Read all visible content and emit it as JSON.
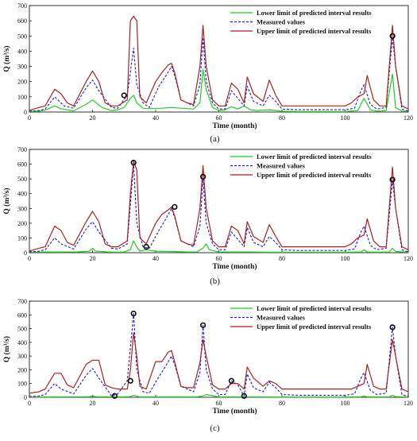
{
  "chart_data": [
    {
      "type": "line",
      "caption": "(a)",
      "xlabel": "Time (month)",
      "ylabel": "Q (m³/s)",
      "xlim": [
        0,
        120
      ],
      "ylim": [
        0,
        700
      ],
      "x_ticks": [
        0,
        20,
        40,
        60,
        80,
        100,
        120
      ],
      "y_ticks": [
        0,
        100,
        200,
        300,
        400,
        500,
        600,
        700
      ],
      "legend_position": "top-right",
      "series": [
        {
          "name": "Lower limit of  predicted interval results",
          "color": "#22cc22",
          "style": "solid",
          "x": [
            0,
            3,
            5,
            8,
            10,
            14,
            18,
            20,
            23,
            26,
            28,
            30,
            32,
            33,
            34,
            36,
            38,
            42,
            45,
            48,
            52,
            54,
            55,
            56,
            58,
            60,
            62,
            64,
            66,
            68,
            70,
            72,
            76,
            80,
            85,
            90,
            95,
            100,
            104,
            106,
            108,
            110,
            113,
            115,
            116,
            118,
            120
          ],
          "y": [
            3,
            6,
            12,
            40,
            22,
            8,
            50,
            80,
            30,
            10,
            15,
            30,
            90,
            110,
            60,
            25,
            22,
            25,
            30,
            25,
            20,
            60,
            280,
            150,
            30,
            10,
            15,
            35,
            20,
            40,
            15,
            10,
            15,
            5,
            3,
            3,
            3,
            3,
            10,
            90,
            15,
            5,
            10,
            250,
            30,
            5,
            5
          ]
        },
        {
          "name": "Measured values",
          "color": "#1f1fcc",
          "style": "dashed",
          "x": [
            0,
            3,
            5,
            8,
            9,
            11,
            14,
            18,
            20,
            22,
            26,
            28,
            31,
            33,
            34,
            36,
            38,
            41,
            43,
            45,
            46,
            48,
            52,
            54,
            55,
            56,
            58,
            60,
            62,
            64,
            66,
            68,
            69,
            71,
            74,
            76,
            78,
            80,
            85,
            90,
            95,
            100,
            103,
            105,
            106,
            108,
            110,
            113,
            115,
            116,
            118,
            120
          ],
          "y": [
            5,
            10,
            20,
            100,
            80,
            40,
            25,
            160,
            210,
            140,
            30,
            25,
            110,
            420,
            180,
            60,
            30,
            170,
            230,
            300,
            240,
            80,
            40,
            180,
            490,
            200,
            60,
            20,
            20,
            140,
            90,
            40,
            170,
            70,
            40,
            110,
            70,
            20,
            15,
            15,
            15,
            15,
            25,
            140,
            180,
            50,
            20,
            30,
            490,
            300,
            20,
            5
          ]
        },
        {
          "name": "Upper limit of  predicted interval results",
          "color": "#a82222",
          "style": "solid",
          "x": [
            0,
            3,
            5,
            8,
            10,
            12,
            14,
            18,
            20,
            22,
            24,
            26,
            28,
            31,
            32,
            33,
            34,
            35,
            37,
            40,
            42,
            44,
            45,
            46,
            48,
            50,
            52,
            54,
            55,
            56,
            58,
            60,
            62,
            64,
            66,
            68,
            69,
            71,
            74,
            76,
            78,
            80,
            85,
            90,
            95,
            100,
            102,
            104,
            106,
            107,
            109,
            111,
            113,
            115,
            116,
            118,
            120
          ],
          "y": [
            10,
            30,
            40,
            150,
            120,
            60,
            40,
            200,
            270,
            200,
            60,
            40,
            40,
            80,
            600,
            630,
            600,
            100,
            60,
            200,
            260,
            310,
            320,
            260,
            80,
            60,
            50,
            300,
            570,
            300,
            80,
            40,
            40,
            190,
            150,
            60,
            230,
            120,
            70,
            210,
            110,
            40,
            40,
            40,
            40,
            40,
            60,
            100,
            120,
            240,
            80,
            40,
            40,
            570,
            300,
            40,
            20
          ]
        }
      ],
      "markers": [
        {
          "x": 30,
          "y": 110
        },
        {
          "x": 115,
          "y": 500
        }
      ]
    },
    {
      "type": "line",
      "caption": "(b)",
      "xlabel": "Time (month)",
      "ylabel": "Q (m³/s)",
      "xlim": [
        0,
        120
      ],
      "ylim": [
        0,
        700
      ],
      "x_ticks": [
        0,
        20,
        40,
        60,
        80,
        100,
        120
      ],
      "y_ticks": [
        0,
        100,
        200,
        300,
        400,
        500,
        600,
        700
      ],
      "legend_position": "top-right",
      "series": [
        {
          "name": "Lower limit of  predicted interval results",
          "color": "#22cc22",
          "style": "solid",
          "x": [
            0,
            5,
            10,
            15,
            19,
            20,
            21,
            25,
            28,
            30,
            32,
            33,
            34,
            35,
            37,
            40,
            45,
            50,
            53,
            55,
            56,
            57,
            60,
            65,
            70,
            75,
            80,
            90,
            100,
            105,
            106,
            107,
            110,
            114,
            115,
            116,
            120
          ],
          "y": [
            3,
            5,
            5,
            5,
            10,
            30,
            10,
            5,
            3,
            5,
            20,
            80,
            40,
            10,
            20,
            10,
            8,
            5,
            5,
            30,
            60,
            20,
            5,
            5,
            5,
            3,
            3,
            3,
            3,
            5,
            20,
            5,
            3,
            5,
            30,
            8,
            3
          ]
        },
        {
          "name": "Measured values",
          "color": "#1f1fcc",
          "style": "dashed",
          "x": [
            0,
            3,
            5,
            8,
            10,
            14,
            18,
            20,
            22,
            26,
            28,
            31,
            33,
            34,
            36,
            38,
            41,
            43,
            45,
            46,
            48,
            52,
            54,
            55,
            56,
            58,
            60,
            62,
            64,
            66,
            68,
            69,
            71,
            74,
            76,
            78,
            80,
            85,
            90,
            95,
            100,
            103,
            105,
            106,
            108,
            110,
            113,
            115,
            116,
            118,
            120
          ],
          "y": [
            5,
            10,
            20,
            100,
            60,
            25,
            160,
            210,
            140,
            30,
            25,
            60,
            600,
            200,
            40,
            30,
            150,
            220,
            300,
            240,
            80,
            40,
            180,
            500,
            200,
            60,
            20,
            20,
            140,
            90,
            40,
            170,
            70,
            40,
            110,
            70,
            20,
            15,
            15,
            15,
            15,
            25,
            140,
            180,
            50,
            20,
            30,
            490,
            300,
            20,
            5
          ]
        },
        {
          "name": "Upper limit of  predicted interval results",
          "color": "#a82222",
          "style": "solid",
          "x": [
            0,
            3,
            5,
            8,
            10,
            12,
            14,
            18,
            20,
            22,
            24,
            26,
            28,
            31,
            32,
            33,
            34,
            35,
            37,
            40,
            42,
            44,
            45,
            46,
            48,
            50,
            52,
            54,
            55,
            56,
            58,
            60,
            62,
            64,
            66,
            68,
            69,
            71,
            74,
            76,
            78,
            80,
            85,
            90,
            95,
            100,
            102,
            104,
            106,
            107,
            109,
            111,
            113,
            115,
            116,
            118,
            120
          ],
          "y": [
            10,
            30,
            40,
            180,
            150,
            70,
            50,
            210,
            280,
            210,
            60,
            40,
            40,
            80,
            400,
            620,
            560,
            100,
            60,
            200,
            260,
            290,
            310,
            250,
            80,
            60,
            50,
            300,
            590,
            300,
            80,
            40,
            40,
            180,
            150,
            60,
            210,
            110,
            70,
            190,
            110,
            40,
            40,
            40,
            40,
            40,
            60,
            100,
            120,
            230,
            80,
            40,
            40,
            580,
            300,
            40,
            20
          ]
        }
      ],
      "markers": [
        {
          "x": 33,
          "y": 610
        },
        {
          "x": 37,
          "y": 40
        },
        {
          "x": 46,
          "y": 310
        },
        {
          "x": 55,
          "y": 515
        },
        {
          "x": 115,
          "y": 495
        }
      ]
    },
    {
      "type": "line",
      "caption": "(c)",
      "xlabel": "Time (month)",
      "ylabel": "Q (m³/s)",
      "xlim": [
        0,
        120
      ],
      "ylim": [
        0,
        700
      ],
      "x_ticks": [
        0,
        20,
        40,
        60,
        80,
        100,
        120
      ],
      "y_ticks": [
        0,
        100,
        200,
        300,
        400,
        500,
        600,
        700
      ],
      "legend_position": "top-right",
      "series": [
        {
          "name": "Lower limit of  predicted interval results",
          "color": "#22cc22",
          "style": "solid",
          "x": [
            0,
            10,
            19,
            20,
            21,
            30,
            32,
            33,
            34,
            35,
            45,
            53,
            55,
            56,
            60,
            70,
            80,
            90,
            100,
            105,
            106,
            107,
            114,
            115,
            116,
            120
          ],
          "y": [
            2,
            3,
            4,
            10,
            4,
            3,
            5,
            15,
            8,
            3,
            3,
            3,
            10,
            20,
            3,
            3,
            2,
            2,
            2,
            3,
            10,
            3,
            3,
            15,
            5,
            2
          ]
        },
        {
          "name": "Measured values",
          "color": "#1f1fcc",
          "style": "dashed",
          "x": [
            0,
            3,
            5,
            8,
            10,
            14,
            18,
            20,
            22,
            26,
            28,
            31,
            33,
            34,
            36,
            38,
            41,
            43,
            45,
            46,
            48,
            52,
            54,
            55,
            56,
            58,
            60,
            62,
            64,
            66,
            68,
            69,
            71,
            74,
            76,
            78,
            80,
            85,
            90,
            95,
            100,
            103,
            105,
            106,
            108,
            110,
            113,
            115,
            116,
            118,
            120
          ],
          "y": [
            5,
            10,
            20,
            100,
            60,
            25,
            160,
            210,
            140,
            10,
            25,
            120,
            610,
            200,
            40,
            30,
            150,
            220,
            300,
            240,
            80,
            40,
            180,
            525,
            200,
            60,
            20,
            20,
            120,
            90,
            10,
            170,
            70,
            40,
            110,
            70,
            20,
            15,
            15,
            15,
            15,
            25,
            140,
            180,
            50,
            20,
            30,
            510,
            300,
            20,
            5
          ]
        },
        {
          "name": "Upper limit of  predicted interval results",
          "color": "#a82222",
          "style": "solid",
          "x": [
            0,
            3,
            5,
            8,
            10,
            12,
            14,
            18,
            20,
            22,
            24,
            26,
            28,
            31,
            32,
            33,
            34,
            35,
            37,
            40,
            42,
            44,
            45,
            46,
            48,
            50,
            52,
            54,
            55,
            56,
            58,
            60,
            62,
            64,
            66,
            68,
            69,
            71,
            74,
            76,
            78,
            80,
            85,
            90,
            95,
            100,
            102,
            104,
            106,
            107,
            109,
            111,
            113,
            115,
            116,
            118,
            120
          ],
          "y": [
            30,
            40,
            60,
            175,
            175,
            90,
            70,
            240,
            270,
            270,
            90,
            70,
            60,
            60,
            200,
            470,
            300,
            80,
            60,
            260,
            260,
            330,
            340,
            260,
            80,
            70,
            70,
            250,
            420,
            300,
            90,
            60,
            60,
            100,
            100,
            60,
            220,
            140,
            80,
            120,
            100,
            60,
            60,
            60,
            60,
            60,
            60,
            80,
            100,
            240,
            80,
            60,
            60,
            420,
            300,
            60,
            40
          ]
        }
      ],
      "markers": [
        {
          "x": 27,
          "y": 10
        },
        {
          "x": 32,
          "y": 120
        },
        {
          "x": 33,
          "y": 610
        },
        {
          "x": 55,
          "y": 525
        },
        {
          "x": 64,
          "y": 120
        },
        {
          "x": 68,
          "y": 10
        },
        {
          "x": 115,
          "y": 510
        }
      ]
    }
  ]
}
